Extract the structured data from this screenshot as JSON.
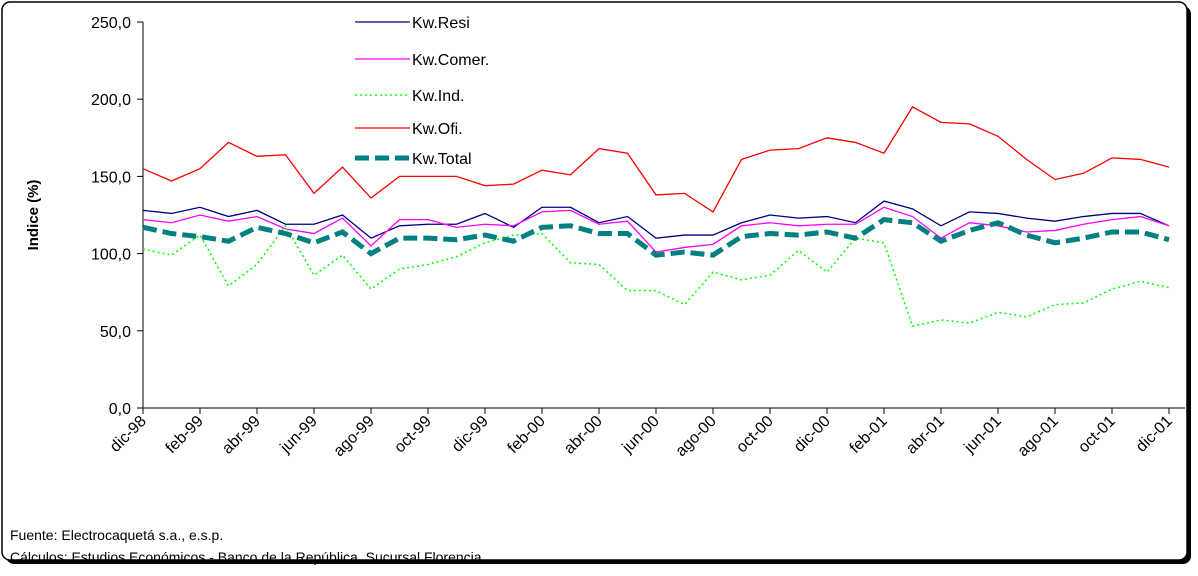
{
  "chart_data": {
    "type": "line",
    "y_label": "Indice (%)",
    "categories": [
      "dic-98",
      null,
      "feb-99",
      null,
      "abr-99",
      null,
      "jun-99",
      null,
      "ago-99",
      null,
      "oct-99",
      null,
      "dic-99",
      null,
      "feb-00",
      null,
      "abr-00",
      null,
      "jun-00",
      null,
      "ago-00",
      null,
      "oct-00",
      null,
      "dic-00",
      null,
      "feb-01",
      null,
      "abr-01",
      null,
      "jun-01",
      null,
      "ago-01",
      null,
      "oct-01",
      null,
      "dic-01"
    ],
    "series": [
      {
        "name": "Kw.Resi",
        "color": "#000080",
        "dash": "solid",
        "width": 1.3,
        "values": [
          128,
          126,
          130,
          124,
          128,
          119,
          119,
          125,
          110,
          118,
          119,
          119,
          126,
          117,
          130,
          130,
          120,
          124,
          110,
          112,
          112,
          120,
          125,
          123,
          124,
          120,
          134,
          129,
          118,
          127,
          126,
          123,
          121,
          124,
          126,
          126,
          118
        ]
      },
      {
        "name": "Kw.Comer.",
        "color": "#ff00ff",
        "dash": "solid",
        "width": 1.3,
        "values": [
          122,
          120,
          125,
          121,
          124,
          116,
          113,
          123,
          105,
          122,
          122,
          117,
          119,
          118,
          127,
          128,
          119,
          121,
          101,
          104,
          106,
          118,
          120,
          118,
          119,
          119,
          130,
          124,
          110,
          120,
          118,
          114,
          115,
          119,
          122,
          124,
          118
        ]
      },
      {
        "name": "Kw.Ind.",
        "color": "#00ff00",
        "dash": "dotted",
        "width": 1.5,
        "values": [
          103,
          99,
          112,
          79,
          93,
          118,
          86,
          99,
          77,
          90,
          93,
          98,
          107,
          112,
          113,
          94,
          93,
          76,
          76,
          67,
          88,
          83,
          86,
          102,
          88,
          110,
          107,
          53,
          57,
          55,
          62,
          59,
          67,
          68,
          77,
          82,
          78
        ]
      },
      {
        "name": "Kw.Ofi.",
        "color": "#ff0000",
        "dash": "solid",
        "width": 1.3,
        "values": [
          155,
          147,
          155,
          172,
          163,
          164,
          139,
          156,
          136,
          150,
          150,
          150,
          144,
          145,
          154,
          151,
          168,
          165,
          138,
          139,
          127,
          161,
          167,
          168,
          175,
          172,
          165,
          195,
          185,
          184,
          176,
          161,
          148,
          152,
          162,
          161,
          156
        ]
      },
      {
        "name": "Kw.Total",
        "color": "#008080",
        "dash": "dashed",
        "width": 5,
        "values": [
          117,
          113,
          111,
          108,
          117,
          113,
          107,
          114,
          100,
          110,
          110,
          109,
          112,
          108,
          117,
          118,
          113,
          113,
          99,
          101,
          99,
          111,
          113,
          112,
          114,
          110,
          122,
          120,
          108,
          115,
          120,
          112,
          107,
          110,
          114,
          114,
          109
        ]
      }
    ],
    "ylim": [
      0,
      250
    ],
    "yticks": [
      {
        "value": 0,
        "label": "0,0"
      },
      {
        "value": 50,
        "label": "50,0"
      },
      {
        "value": 100,
        "label": "100,0"
      },
      {
        "value": 150,
        "label": "150,0"
      },
      {
        "value": 200,
        "label": "200,0"
      },
      {
        "value": 250,
        "label": "250,0"
      }
    ],
    "legend": "top-left",
    "notes": [
      "Fuente: Electrocaquetá s.a., e.s.p.",
      "Cálculos:  Estudios Económicos - Banco de la República, Sucursal Florencia."
    ]
  }
}
